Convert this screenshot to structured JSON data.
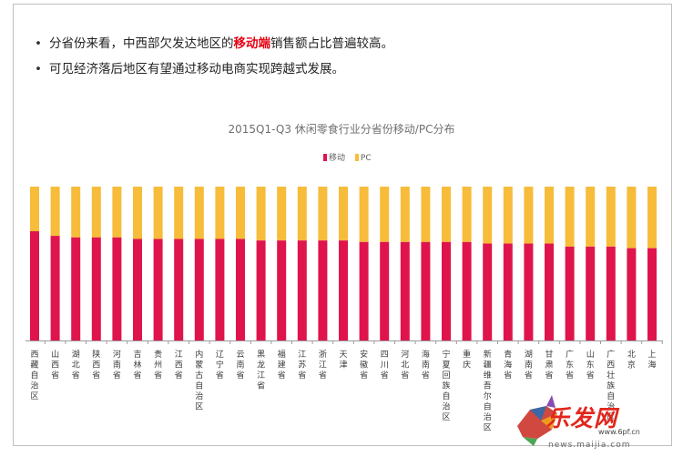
{
  "bullets": [
    {
      "before": "分省份来看，中西部欠发达地区的",
      "highlight": "移动端",
      "after": "销售额占比普遍较高。"
    },
    {
      "before": "可见经济落后地区有望通过移动电商实现跨越式发展。",
      "highlight": "",
      "after": ""
    }
  ],
  "bullet_glyph": "•",
  "colors": {
    "mobile": "#e0144c",
    "pc": "#f7bc3a",
    "highlight": "#e60012"
  },
  "chart_data": {
    "type": "bar",
    "stacked": true,
    "title": "2015Q1-Q3 休闲零食行业分省份移动/PC分布",
    "legend": [
      {
        "name": "移动",
        "color": "#e0144c"
      },
      {
        "name": "PC",
        "color": "#f7bc3a"
      }
    ],
    "legend_position": "top-center",
    "categories": [
      "西藏自治区",
      "山西省",
      "湖北省",
      "陕西省",
      "河南省",
      "吉林省",
      "贵州省",
      "江西省",
      "内蒙古自治区",
      "辽宁省",
      "云南省",
      "黑龙江省",
      "福建省",
      "江苏省",
      "浙江省",
      "天津",
      "安徽省",
      "四川省",
      "河北省",
      "海南省",
      "宁夏回族自治区",
      "重庆",
      "新疆维吾尔自治区",
      "青海省",
      "湖南省",
      "甘肃省",
      "广东省",
      "山东省",
      "广西壮族自治区",
      "北京",
      "上海"
    ],
    "series": [
      {
        "name": "移动",
        "values": [
          71,
          68,
          67,
          67,
          67,
          66,
          66,
          66,
          66,
          66,
          66,
          65,
          65,
          65,
          65,
          65,
          64,
          64,
          64,
          64,
          64,
          64,
          63,
          63,
          63,
          63,
          61,
          61,
          61,
          60,
          60
        ]
      },
      {
        "name": "PC",
        "values": [
          29,
          32,
          33,
          33,
          33,
          34,
          34,
          34,
          34,
          34,
          34,
          35,
          35,
          35,
          35,
          35,
          36,
          36,
          36,
          36,
          36,
          36,
          37,
          37,
          37,
          37,
          39,
          39,
          39,
          40,
          40
        ]
      }
    ],
    "ylim": [
      0,
      100
    ],
    "grid": false,
    "xlabel": "",
    "ylabel": ""
  },
  "watermark": {
    "brand": "乐发网",
    "url1": "www.6pf.cn",
    "url2": "news.maijia.com"
  }
}
